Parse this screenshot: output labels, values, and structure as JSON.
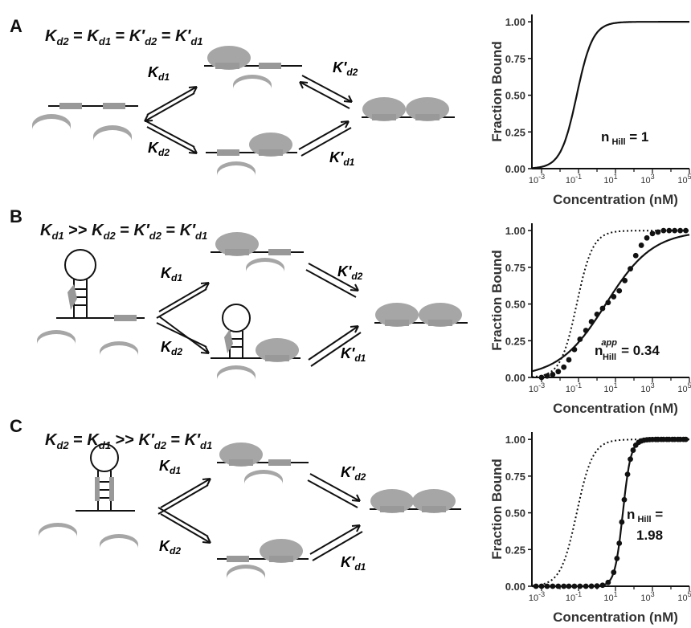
{
  "panels": [
    {
      "letter": "A",
      "equation": {
        "parts": [
          [
            "K",
            "d2"
          ],
          [
            "=",
            "",
            ""
          ],
          [
            "K",
            "d1"
          ],
          [
            "=",
            "",
            ""
          ],
          [
            "K′",
            "d2"
          ],
          [
            "=",
            "",
            ""
          ],
          [
            "K′",
            "d1"
          ]
        ]
      },
      "rates": {
        "top_left": [
          "K",
          "d1"
        ],
        "bottom_left": [
          "K",
          "d2"
        ],
        "top_right": [
          "K′",
          "d2"
        ],
        "bottom_right": [
          "K′",
          "d1"
        ]
      },
      "hill": {
        "n": "n",
        "sub": "Hill",
        "sup": "",
        "value": "= 1",
        "value2": ""
      }
    },
    {
      "letter": "B",
      "equation": {
        "parts": [
          [
            "K",
            "d1"
          ],
          [
            ">>",
            "",
            ""
          ],
          [
            "K",
            "d2"
          ],
          [
            "=",
            "",
            ""
          ],
          [
            "K′",
            "d2"
          ],
          [
            "=",
            "",
            ""
          ],
          [
            "K′",
            "d1"
          ]
        ]
      },
      "rates": {
        "top_left": [
          "K",
          "d1"
        ],
        "bottom_left": [
          "K",
          "d2"
        ],
        "top_right": [
          "K′",
          "d2"
        ],
        "bottom_right": [
          "K′",
          "d1"
        ]
      },
      "hill": {
        "n": "n",
        "sub": "Hill",
        "sup": "app",
        "value": "= 0.34",
        "value2": ""
      }
    },
    {
      "letter": "C",
      "equation": {
        "parts": [
          [
            "K",
            "d2"
          ],
          [
            "=",
            "",
            ""
          ],
          [
            "K",
            "d1"
          ],
          [
            ">>",
            "",
            ""
          ],
          [
            "K′",
            "d2"
          ],
          [
            "=",
            "",
            ""
          ],
          [
            "K′",
            "d1"
          ]
        ]
      },
      "rates": {
        "top_left": [
          "K",
          "d1"
        ],
        "bottom_left": [
          "K",
          "d2"
        ],
        "top_right": [
          "K′",
          "d2"
        ],
        "bottom_right": [
          "K′",
          "d1"
        ]
      },
      "hill": {
        "n": "n",
        "sub": "Hill",
        "sup": "",
        "value": "=",
        "value2": "1.98"
      }
    }
  ],
  "chart_data": [
    {
      "type": "line",
      "ylabel": "Fraction Bound",
      "xlabel": "Concentration (nM)",
      "x_scale": "log10",
      "xlim": [
        0.0003,
        100000
      ],
      "ylim": [
        0,
        1.05
      ],
      "yticks": [
        "0.00",
        "0.25",
        "0.50",
        "0.75",
        "1.00"
      ],
      "xticks": [
        "10^-3",
        "10^-1",
        "10^1",
        "10^3",
        "10^5"
      ],
      "series": [
        {
          "style": "solid",
          "model": "hill",
          "K": 0.08,
          "n": 1.0
        }
      ]
    },
    {
      "type": "line",
      "ylabel": "Fraction Bound",
      "xlabel": "Concentration (nM)",
      "x_scale": "log10",
      "xlim": [
        0.0003,
        100000
      ],
      "ylim": [
        0,
        1.05
      ],
      "yticks": [
        "0.00",
        "0.25",
        "0.50",
        "0.75",
        "1.00"
      ],
      "xticks": [
        "10^-3",
        "10^-1",
        "10^1",
        "10^3",
        "10^5"
      ],
      "series": [
        {
          "style": "dotted",
          "model": "hill",
          "K": 0.08,
          "n": 1.0
        },
        {
          "style": "solid",
          "model": "hill",
          "K": 3.0,
          "n": 0.34
        },
        {
          "style": "points",
          "x": [
            0.001,
            0.002,
            0.004,
            0.008,
            0.016,
            0.03,
            0.06,
            0.12,
            0.25,
            0.5,
            1,
            2,
            4,
            8,
            16,
            32,
            64,
            125,
            250,
            500,
            1000,
            2000,
            4000,
            8000,
            16000,
            32000,
            64000
          ],
          "y": [
            0.0,
            0.01,
            0.02,
            0.04,
            0.07,
            0.12,
            0.19,
            0.26,
            0.32,
            0.38,
            0.43,
            0.47,
            0.51,
            0.55,
            0.59,
            0.66,
            0.74,
            0.83,
            0.9,
            0.95,
            0.98,
            0.99,
            1.0,
            1.0,
            1.0,
            1.0,
            1.0
          ]
        }
      ]
    },
    {
      "type": "line",
      "ylabel": "Fraction Bound",
      "xlabel": "Concentration (nM)",
      "x_scale": "log10",
      "xlim": [
        0.0003,
        100000
      ],
      "ylim": [
        0,
        1.05
      ],
      "yticks": [
        "0.00",
        "0.25",
        "0.50",
        "0.75",
        "1.00"
      ],
      "xticks": [
        "10^-3",
        "10^-1",
        "10^1",
        "10^3",
        "10^5"
      ],
      "series": [
        {
          "style": "dotted",
          "model": "hill",
          "K": 0.08,
          "n": 1.0
        },
        {
          "style": "solid",
          "model": "hill",
          "K": 25,
          "n": 1.98
        },
        {
          "style": "points",
          "x": [
            0.0005,
            0.001,
            0.002,
            0.004,
            0.008,
            0.016,
            0.03,
            0.06,
            0.12,
            0.25,
            0.5,
            1,
            2,
            4,
            8,
            12,
            16,
            22,
            30,
            45,
            64,
            90,
            125,
            180,
            250,
            350,
            500,
            700,
            1000,
            1500,
            2000,
            3000,
            4000,
            6000,
            8000,
            12000,
            16000,
            24000,
            32000,
            48000,
            64000
          ],
          "y": "hill"
        }
      ]
    }
  ]
}
